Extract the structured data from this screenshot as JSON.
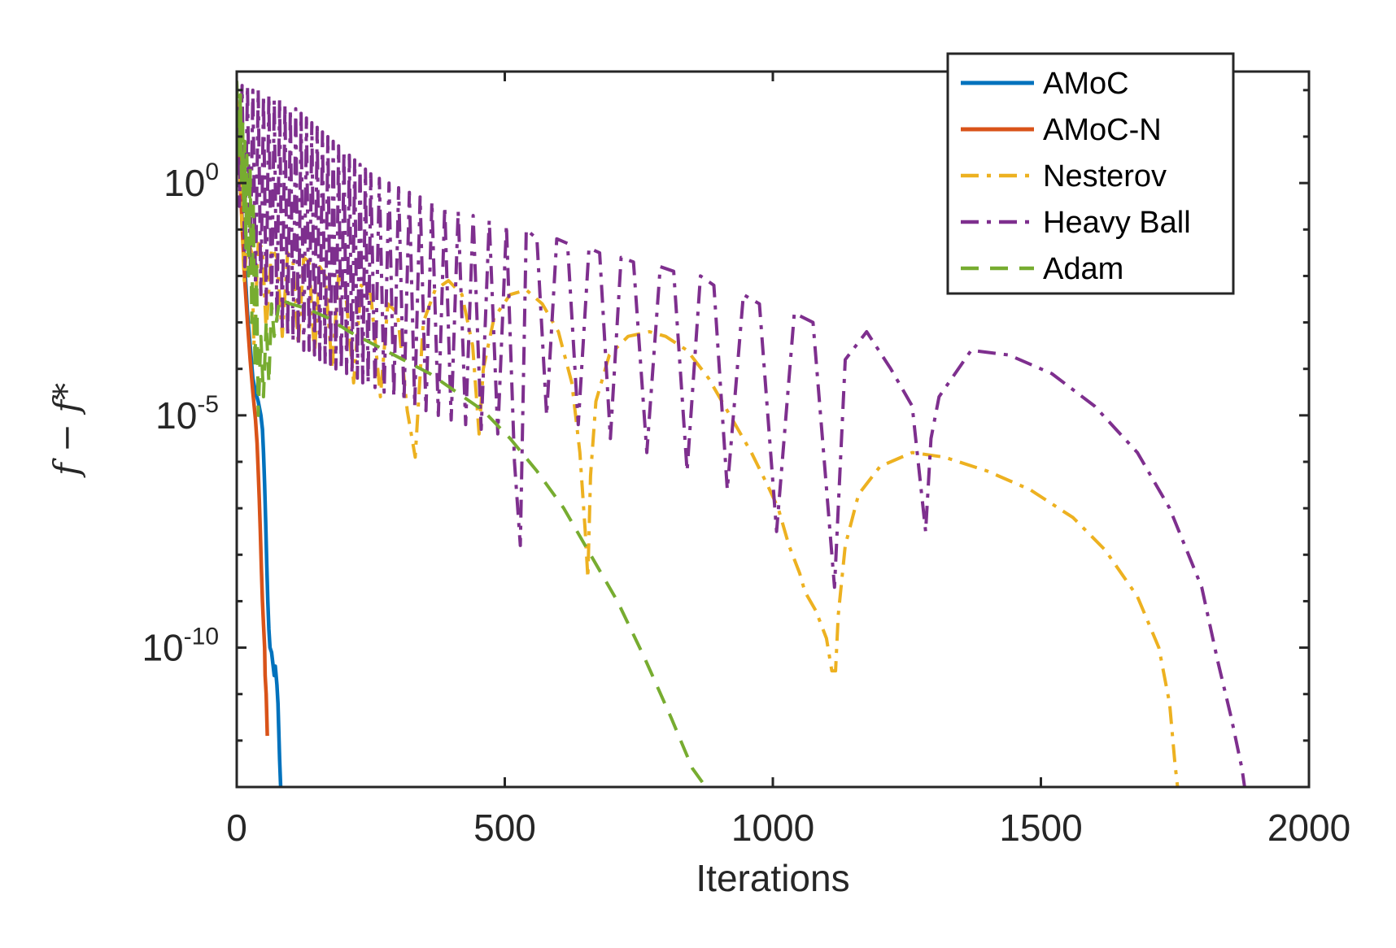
{
  "chart_data": {
    "type": "line",
    "xlabel": "Iterations",
    "ylabel": "f − f*",
    "xlim": [
      0,
      2000
    ],
    "ylim_exp": [
      -13,
      2.4
    ],
    "yscale": "log",
    "x_ticks": [
      "0",
      "500",
      "1000",
      "1500",
      "2000"
    ],
    "y_ticks": [
      {
        "base": "10",
        "exp": "0",
        "value": 0
      },
      {
        "base": "10",
        "exp": "-5",
        "value": -5
      },
      {
        "base": "10",
        "exp": "-10",
        "value": -10
      }
    ],
    "legend_position": "top-right",
    "series": [
      {
        "name": "AMoC",
        "color": "#0072BD",
        "dash": "solid",
        "points": [
          [
            0,
            1.8
          ],
          [
            5,
            0.8
          ],
          [
            10,
            -0.8
          ],
          [
            15,
            -1.8
          ],
          [
            20,
            -2.8
          ],
          [
            25,
            -3.5
          ],
          [
            30,
            -4.2
          ],
          [
            35,
            -4.5
          ],
          [
            40,
            -4.7
          ],
          [
            45,
            -5.0
          ],
          [
            48,
            -5.3
          ],
          [
            50,
            -5.8
          ],
          [
            52,
            -6.5
          ],
          [
            54,
            -7.3
          ],
          [
            56,
            -8.2
          ],
          [
            58,
            -9.0
          ],
          [
            60,
            -9.6
          ],
          [
            62,
            -10.0
          ],
          [
            65,
            -10.1
          ],
          [
            68,
            -10.4
          ],
          [
            70,
            -10.6
          ],
          [
            72,
            -10.4
          ],
          [
            75,
            -10.8
          ],
          [
            77,
            -11.2
          ],
          [
            80,
            -12.4
          ],
          [
            82,
            -13
          ]
        ]
      },
      {
        "name": "AMoC-N",
        "color": "#D95319",
        "dash": "solid",
        "points": [
          [
            0,
            1.6
          ],
          [
            5,
            0.5
          ],
          [
            10,
            -0.9
          ],
          [
            15,
            -2.1
          ],
          [
            20,
            -3.0
          ],
          [
            25,
            -3.8
          ],
          [
            30,
            -4.5
          ],
          [
            35,
            -5.1
          ],
          [
            38,
            -5.6
          ],
          [
            40,
            -6.2
          ],
          [
            42,
            -6.8
          ],
          [
            44,
            -7.5
          ],
          [
            46,
            -8.3
          ],
          [
            48,
            -9.0
          ],
          [
            50,
            -9.5
          ],
          [
            52,
            -10.0
          ],
          [
            53,
            -10.6
          ],
          [
            55,
            -11.0
          ],
          [
            57,
            -11.9
          ]
        ]
      },
      {
        "name": "Nesterov",
        "color": "#EDB120",
        "dash": "dashdot",
        "points": [
          [
            0,
            1.8
          ],
          [
            5,
            0.6
          ],
          [
            10,
            -1.0
          ],
          [
            14,
            -2.1
          ],
          [
            20,
            -1.2
          ],
          [
            28,
            -1.5
          ],
          [
            32,
            -3.5
          ],
          [
            40,
            -1.3
          ],
          [
            48,
            -1.4
          ],
          [
            55,
            -3.2
          ],
          [
            65,
            -1.4
          ],
          [
            75,
            -1.6
          ],
          [
            85,
            -3.3
          ],
          [
            95,
            -1.5
          ],
          [
            105,
            -1.7
          ],
          [
            115,
            -3.5
          ],
          [
            125,
            -1.6
          ],
          [
            135,
            -1.7
          ],
          [
            145,
            -3.7
          ],
          [
            155,
            -1.8
          ],
          [
            165,
            -2.0
          ],
          [
            178,
            -4.0
          ],
          [
            190,
            -2.0
          ],
          [
            202,
            -2.2
          ],
          [
            218,
            -4.3
          ],
          [
            232,
            -2.2
          ],
          [
            250,
            -2.4
          ],
          [
            268,
            -4.6
          ],
          [
            282,
            -2.6
          ],
          [
            300,
            -2.8
          ],
          [
            318,
            -4.9
          ],
          [
            333,
            -5.9
          ],
          [
            348,
            -3.0
          ],
          [
            370,
            -2.3
          ],
          [
            395,
            -2.1
          ],
          [
            420,
            -2.4
          ],
          [
            440,
            -3.5
          ],
          [
            452,
            -5.4
          ],
          [
            460,
            -4.0
          ],
          [
            480,
            -2.9
          ],
          [
            510,
            -2.4
          ],
          [
            540,
            -2.3
          ],
          [
            570,
            -2.6
          ],
          [
            600,
            -3.2
          ],
          [
            625,
            -4.3
          ],
          [
            640,
            -5.8
          ],
          [
            650,
            -7.5
          ],
          [
            655,
            -8.5
          ],
          [
            660,
            -6.3
          ],
          [
            670,
            -4.7
          ],
          [
            695,
            -3.7
          ],
          [
            730,
            -3.3
          ],
          [
            770,
            -3.2
          ],
          [
            800,
            -3.3
          ],
          [
            840,
            -3.6
          ],
          [
            880,
            -4.2
          ],
          [
            920,
            -5.0
          ],
          [
            960,
            -5.8
          ],
          [
            990,
            -6.5
          ],
          [
            1010,
            -7.0
          ],
          [
            1030,
            -7.8
          ],
          [
            1050,
            -8.4
          ],
          [
            1060,
            -8.8
          ],
          [
            1080,
            -9.2
          ],
          [
            1100,
            -9.8
          ],
          [
            1110,
            -10.5
          ],
          [
            1117,
            -10.5
          ],
          [
            1122,
            -9.3
          ],
          [
            1135,
            -7.8
          ],
          [
            1160,
            -6.7
          ],
          [
            1200,
            -6.1
          ],
          [
            1260,
            -5.8
          ],
          [
            1320,
            -5.9
          ],
          [
            1400,
            -6.2
          ],
          [
            1480,
            -6.6
          ],
          [
            1560,
            -7.2
          ],
          [
            1620,
            -7.9
          ],
          [
            1680,
            -8.9
          ],
          [
            1720,
            -10.0
          ],
          [
            1740,
            -11.2
          ],
          [
            1750,
            -12.5
          ],
          [
            1755,
            -13
          ]
        ]
      },
      {
        "name": "Heavy Ball",
        "color": "#7E2F8E",
        "dash": "dashdot",
        "points": [
          [
            0,
            2.2
          ],
          [
            5,
            -0.5
          ],
          [
            10,
            2.1
          ],
          [
            15,
            -1.8
          ],
          [
            20,
            2.1
          ],
          [
            25,
            -2.0
          ],
          [
            30,
            2.0
          ],
          [
            35,
            -2.2
          ],
          [
            40,
            2.0
          ],
          [
            45,
            -2.4
          ],
          [
            50,
            1.9
          ],
          [
            55,
            -2.6
          ],
          [
            60,
            1.9
          ],
          [
            65,
            -2.8
          ],
          [
            70,
            1.8
          ],
          [
            75,
            -3.0
          ],
          [
            80,
            1.8
          ],
          [
            85,
            -3.2
          ],
          [
            90,
            1.7
          ],
          [
            95,
            -3.3
          ],
          [
            100,
            1.6
          ],
          [
            105,
            -3.4
          ],
          [
            110,
            1.6
          ],
          [
            115,
            -3.5
          ],
          [
            120,
            1.5
          ],
          [
            125,
            -3.6
          ],
          [
            130,
            1.4
          ],
          [
            135,
            -3.6
          ],
          [
            140,
            1.3
          ],
          [
            145,
            -3.7
          ],
          [
            150,
            1.2
          ],
          [
            155,
            -3.8
          ],
          [
            160,
            1.1
          ],
          [
            165,
            -3.9
          ],
          [
            170,
            1.0
          ],
          [
            175,
            -3.9
          ],
          [
            180,
            0.9
          ],
          [
            185,
            -4.0
          ],
          [
            190,
            0.8
          ],
          [
            195,
            -4.0
          ],
          [
            200,
            0.7
          ],
          [
            205,
            -4.1
          ],
          [
            210,
            0.6
          ],
          [
            215,
            -4.1
          ],
          [
            220,
            0.5
          ],
          [
            225,
            -4.2
          ],
          [
            230,
            0.4
          ],
          [
            235,
            -4.3
          ],
          [
            240,
            0.3
          ],
          [
            245,
            -4.3
          ],
          [
            250,
            0.2
          ],
          [
            258,
            -4.4
          ],
          [
            266,
            0.1
          ],
          [
            275,
            -4.5
          ],
          [
            284,
            0.0
          ],
          [
            293,
            -4.6
          ],
          [
            302,
            -0.1
          ],
          [
            312,
            -4.7
          ],
          [
            322,
            -0.2
          ],
          [
            332,
            -4.8
          ],
          [
            342,
            -0.3
          ],
          [
            353,
            -4.9
          ],
          [
            364,
            -0.4
          ],
          [
            376,
            -5.0
          ],
          [
            388,
            -0.5
          ],
          [
            400,
            -5.1
          ],
          [
            413,
            -0.6
          ],
          [
            427,
            -5.2
          ],
          [
            441,
            -0.7
          ],
          [
            456,
            -5.3
          ],
          [
            471,
            -0.8
          ],
          [
            487,
            -5.4
          ],
          [
            503,
            -0.9
          ],
          [
            518,
            -6.0
          ],
          [
            529,
            -7.8
          ],
          [
            540,
            -1.0
          ],
          [
            560,
            -1.2
          ],
          [
            578,
            -5.0
          ],
          [
            597,
            -1.2
          ],
          [
            617,
            -1.3
          ],
          [
            637,
            -5.2
          ],
          [
            657,
            -1.4
          ],
          [
            677,
            -1.5
          ],
          [
            697,
            -5.5
          ],
          [
            717,
            -1.6
          ],
          [
            740,
            -1.7
          ],
          [
            765,
            -5.8
          ],
          [
            790,
            -1.8
          ],
          [
            815,
            -1.9
          ],
          [
            840,
            -6.2
          ],
          [
            865,
            -2.0
          ],
          [
            890,
            -2.2
          ],
          [
            915,
            -6.6
          ],
          [
            945,
            -2.4
          ],
          [
            975,
            -2.6
          ],
          [
            1007,
            -7.5
          ],
          [
            1040,
            -2.8
          ],
          [
            1075,
            -3.0
          ],
          [
            1115,
            -8.7
          ],
          [
            1135,
            -3.8
          ],
          [
            1175,
            -3.2
          ],
          [
            1220,
            -4.0
          ],
          [
            1260,
            -4.8
          ],
          [
            1285,
            -7.5
          ],
          [
            1295,
            -5.5
          ],
          [
            1310,
            -4.6
          ],
          [
            1370,
            -3.6
          ],
          [
            1440,
            -3.7
          ],
          [
            1520,
            -4.1
          ],
          [
            1600,
            -4.8
          ],
          [
            1680,
            -5.8
          ],
          [
            1740,
            -7.0
          ],
          [
            1800,
            -8.7
          ],
          [
            1830,
            -10.3
          ],
          [
            1855,
            -11.5
          ],
          [
            1875,
            -12.6
          ],
          [
            1880,
            -13
          ]
        ]
      },
      {
        "name": "Adam",
        "color": "#77AC30",
        "dash": "dashed",
        "points": [
          [
            0,
            2.2
          ],
          [
            3,
            1.3
          ],
          [
            5,
            0.6
          ],
          [
            7,
            1.9
          ],
          [
            9,
            0.0
          ],
          [
            11,
            1.4
          ],
          [
            13,
            -0.6
          ],
          [
            15,
            0.9
          ],
          [
            17,
            -1.4
          ],
          [
            19,
            0.6
          ],
          [
            22,
            -2.0
          ],
          [
            25,
            0.3
          ],
          [
            28,
            -3.0
          ],
          [
            31,
            -0.5
          ],
          [
            34,
            -4.0
          ],
          [
            37,
            -1.8
          ],
          [
            40,
            -5.0
          ],
          [
            45,
            -3.3
          ],
          [
            50,
            -4.6
          ],
          [
            55,
            -3.0
          ],
          [
            60,
            -4.3
          ],
          [
            65,
            -2.6
          ],
          [
            70,
            -3.3
          ],
          [
            80,
            -2.5
          ],
          [
            100,
            -2.6
          ],
          [
            130,
            -2.7
          ],
          [
            170,
            -2.9
          ],
          [
            210,
            -3.2
          ],
          [
            260,
            -3.5
          ],
          [
            310,
            -3.8
          ],
          [
            360,
            -4.1
          ],
          [
            410,
            -4.5
          ],
          [
            460,
            -4.9
          ],
          [
            510,
            -5.5
          ],
          [
            560,
            -6.2
          ],
          [
            610,
            -7.0
          ],
          [
            660,
            -8.0
          ],
          [
            710,
            -9.0
          ],
          [
            760,
            -10.2
          ],
          [
            810,
            -11.5
          ],
          [
            850,
            -12.6
          ],
          [
            875,
            -13
          ]
        ]
      }
    ],
    "styles": {
      "axis_color": "#262626",
      "background": "#ffffff"
    }
  }
}
